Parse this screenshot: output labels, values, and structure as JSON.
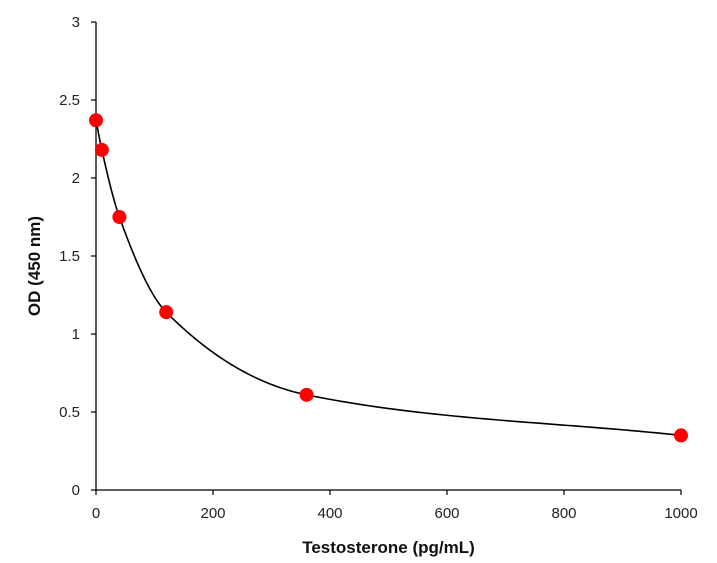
{
  "chart_data": {
    "type": "scatter",
    "title": "",
    "xlabel": "Testosterone (pg/mL)",
    "ylabel": "OD (450 nm)",
    "xlim": [
      0,
      1000
    ],
    "ylim": [
      0,
      3
    ],
    "x_ticks": [
      0,
      200,
      400,
      600,
      800,
      1000
    ],
    "y_ticks": [
      0,
      0.5,
      1,
      1.5,
      2,
      2.5,
      3
    ],
    "x_tick_labels": [
      "0",
      "200",
      "400",
      "600",
      "800",
      "1000"
    ],
    "y_tick_labels": [
      "0",
      "0.5",
      "1",
      "1.5",
      "2",
      "2.5",
      "3"
    ],
    "grid": false,
    "legend": "none",
    "series": [
      {
        "x": [
          0,
          10,
          40,
          120,
          360,
          1000
        ],
        "y": [
          2.37,
          2.18,
          1.75,
          1.14,
          0.61,
          0.35
        ],
        "marker_color": "#ff0000",
        "fit_line": true,
        "line_color": "#000000"
      }
    ]
  }
}
